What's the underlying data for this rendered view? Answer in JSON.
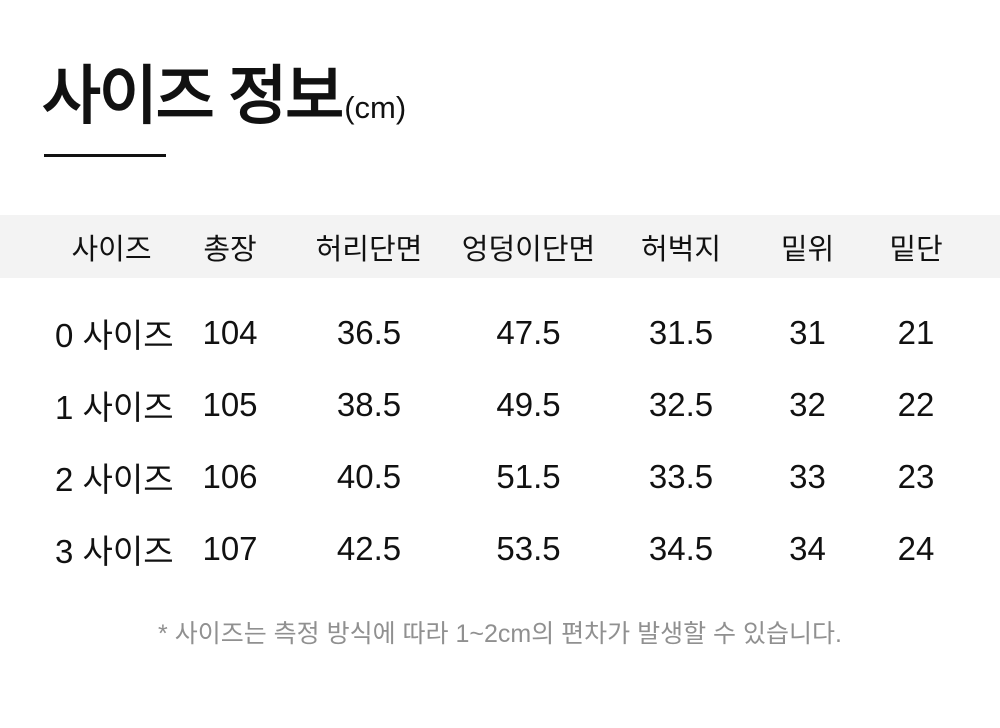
{
  "title": {
    "main": "사이즈 정보",
    "unit": "(cm)"
  },
  "table": {
    "columns": [
      "사이즈",
      "총장",
      "허리단면",
      "엉덩이단면",
      "허벅지",
      "밑위",
      "밑단"
    ],
    "rows": [
      [
        "0 사이즈",
        "104",
        "36.5",
        "47.5",
        "31.5",
        "31",
        "21"
      ],
      [
        "1 사이즈",
        "105",
        "38.5",
        "49.5",
        "32.5",
        "32",
        "22"
      ],
      [
        "2 사이즈",
        "106",
        "40.5",
        "51.5",
        "33.5",
        "33",
        "23"
      ],
      [
        "3 사이즈",
        "107",
        "42.5",
        "53.5",
        "34.5",
        "34",
        "24"
      ]
    ]
  },
  "footnote": "* 사이즈는 측정 방식에 따라 1~2cm의 편차가 발생할 수 있습니다.",
  "colors": {
    "header_bg": "#f3f3f3",
    "text": "#111111",
    "underline": "#111111",
    "footnote_text": "#909090",
    "background": "#ffffff"
  }
}
